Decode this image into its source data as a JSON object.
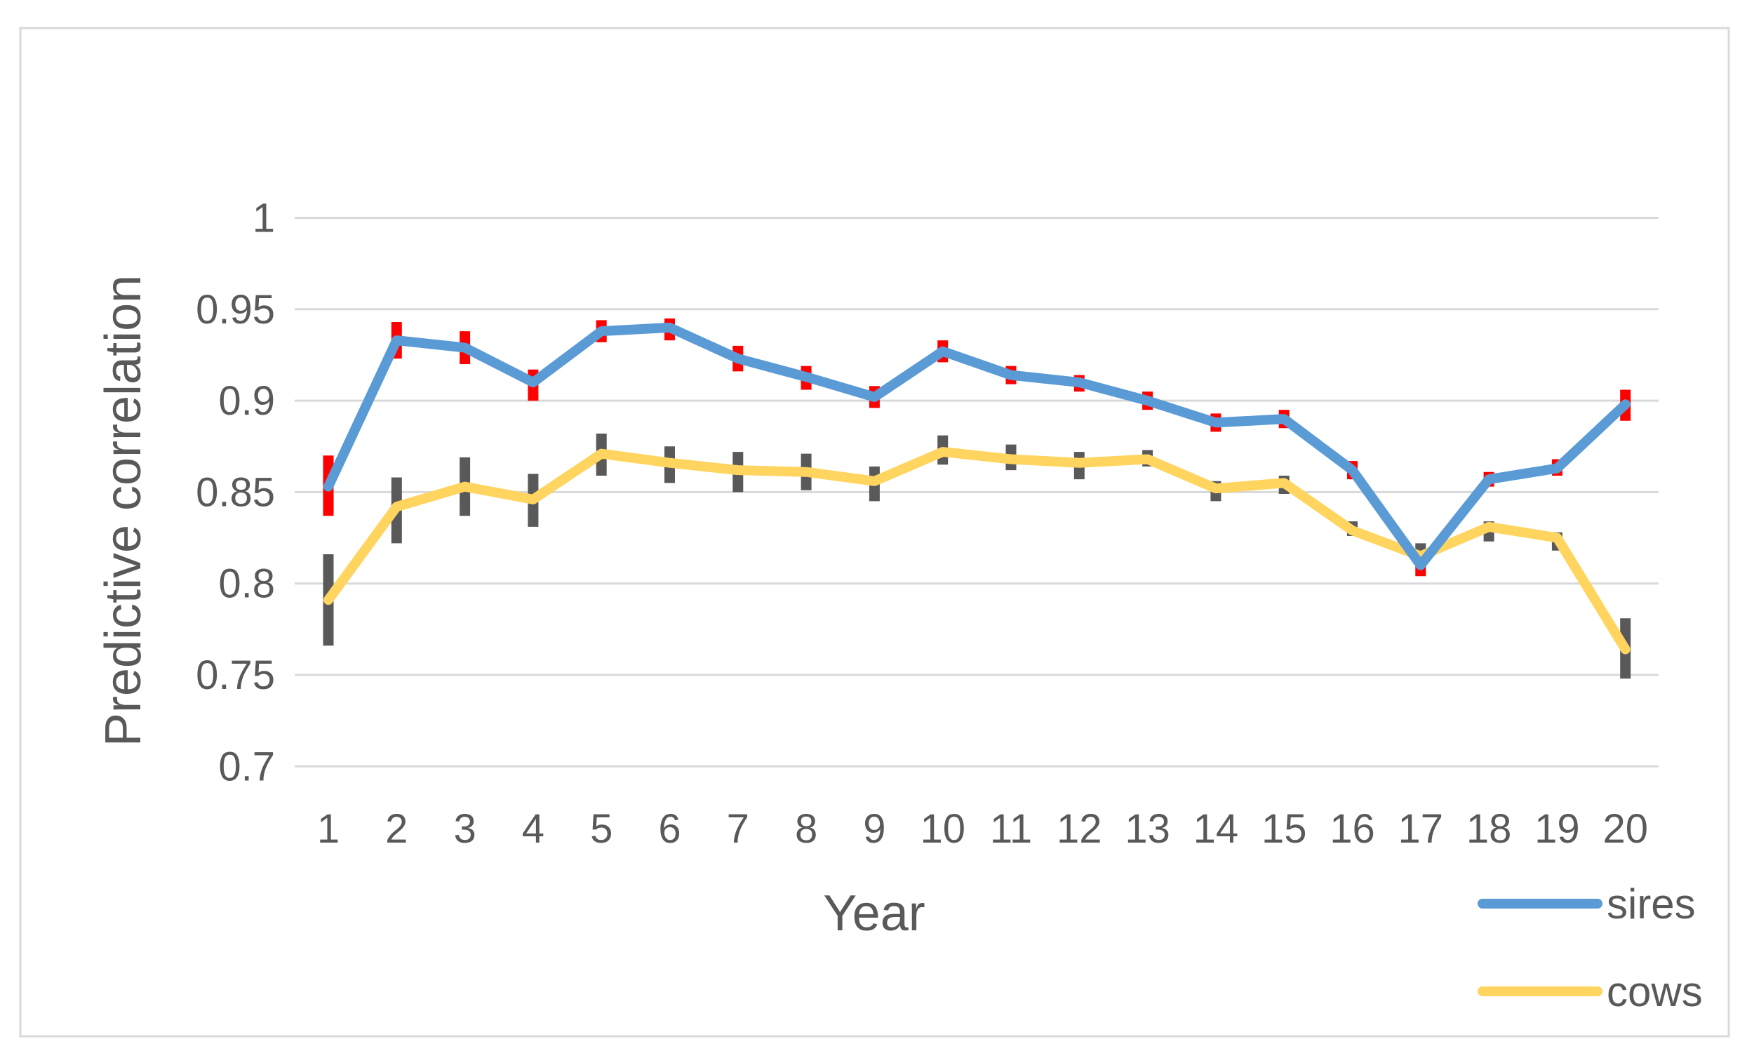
{
  "chart_data": {
    "type": "line",
    "title": "",
    "xlabel": "Year",
    "ylabel": "Predictive correlation",
    "categories": [
      1,
      2,
      3,
      4,
      5,
      6,
      7,
      8,
      9,
      10,
      11,
      12,
      13,
      14,
      15,
      16,
      17,
      18,
      19,
      20
    ],
    "ylim": [
      0.7,
      1.0
    ],
    "y_ticks": [
      1,
      0.95,
      0.9,
      0.85,
      0.8,
      0.75,
      0.7
    ],
    "y_tick_labels": [
      "1",
      "0.95",
      "0.9",
      "0.85",
      "0.8",
      "0.75",
      "0.7"
    ],
    "grid": true,
    "legend_position": "bottom-right",
    "series": [
      {
        "name": "sires",
        "color": "#5B9BD5",
        "error_color": "#FF0000",
        "values": [
          0.853,
          0.933,
          0.929,
          0.91,
          0.938,
          0.94,
          0.923,
          0.913,
          0.902,
          0.927,
          0.914,
          0.91,
          0.9,
          0.888,
          0.89,
          0.862,
          0.81,
          0.857,
          0.863,
          0.898
        ],
        "error_lo": [
          0.837,
          0.923,
          0.92,
          0.9,
          0.932,
          0.933,
          0.916,
          0.906,
          0.896,
          0.921,
          0.909,
          0.905,
          0.895,
          0.883,
          0.885,
          0.857,
          0.804,
          0.853,
          0.859,
          0.889
        ],
        "error_hi": [
          0.87,
          0.943,
          0.938,
          0.917,
          0.944,
          0.945,
          0.93,
          0.919,
          0.908,
          0.933,
          0.919,
          0.914,
          0.905,
          0.893,
          0.895,
          0.867,
          0.814,
          0.861,
          0.868,
          0.906
        ]
      },
      {
        "name": "cows",
        "color": "#FFD45F",
        "error_color": "#595959",
        "values": [
          0.791,
          0.842,
          0.853,
          0.846,
          0.871,
          0.866,
          0.862,
          0.861,
          0.856,
          0.872,
          0.868,
          0.866,
          0.868,
          0.852,
          0.855,
          0.829,
          0.815,
          0.831,
          0.825,
          0.764
        ],
        "error_lo": [
          0.766,
          0.822,
          0.837,
          0.831,
          0.859,
          0.855,
          0.85,
          0.851,
          0.845,
          0.865,
          0.862,
          0.857,
          0.864,
          0.845,
          0.849,
          0.826,
          0.812,
          0.823,
          0.818,
          0.748
        ],
        "error_hi": [
          0.816,
          0.858,
          0.869,
          0.86,
          0.882,
          0.875,
          0.872,
          0.871,
          0.864,
          0.881,
          0.876,
          0.872,
          0.873,
          0.856,
          0.859,
          0.834,
          0.822,
          0.834,
          0.828,
          0.781
        ]
      }
    ]
  },
  "colors": {
    "background": "#FFFFFF",
    "border": "#D9D9D9",
    "gridline": "#D9D9D9",
    "text": "#595959"
  }
}
